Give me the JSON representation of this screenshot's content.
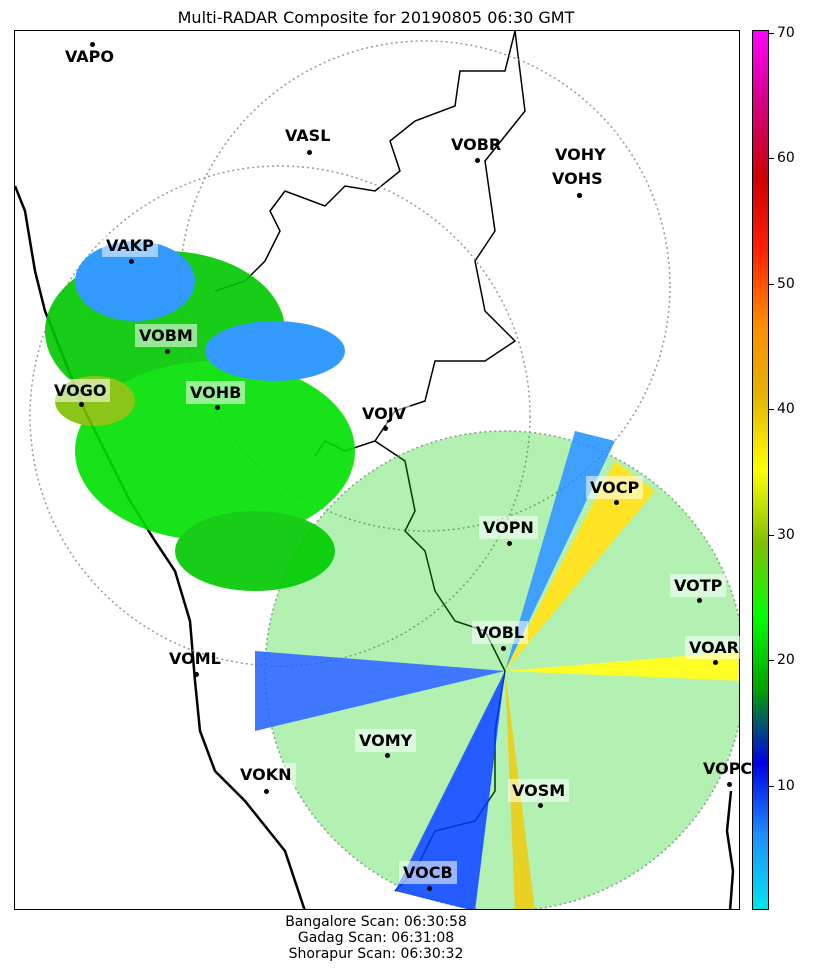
{
  "title": "Multi-RADAR Composite for 20190805 06:30 GMT",
  "colorbar": {
    "ticks": [
      "10",
      "20",
      "30",
      "40",
      "50",
      "60",
      "70"
    ],
    "colors": [
      "#00e5ee",
      "#1e90ff",
      "#0000e6",
      "#00a000",
      "#00ff00",
      "#7fbf00",
      "#ffff00",
      "#e6b400",
      "#ff8c00",
      "#ff2000",
      "#cc0000",
      "#d40080",
      "#ff00ff"
    ]
  },
  "stations": [
    {
      "name": "VAPO",
      "highlight": false
    },
    {
      "name": "VASL",
      "highlight": false
    },
    {
      "name": "VOBR",
      "highlight": false
    },
    {
      "name": "VOHY",
      "highlight": false
    },
    {
      "name": "VOHS",
      "highlight": false
    },
    {
      "name": "VAKP",
      "highlight": true
    },
    {
      "name": "VOBM",
      "highlight": true
    },
    {
      "name": "VOGO",
      "highlight": true
    },
    {
      "name": "VOHB",
      "highlight": true
    },
    {
      "name": "VOJV",
      "highlight": true
    },
    {
      "name": "VOCP",
      "highlight": true
    },
    {
      "name": "VOPN",
      "highlight": true
    },
    {
      "name": "VOTP",
      "highlight": true
    },
    {
      "name": "VOBL",
      "highlight": true
    },
    {
      "name": "VOAR",
      "highlight": true
    },
    {
      "name": "VOML",
      "highlight": false
    },
    {
      "name": "VOMY",
      "highlight": true
    },
    {
      "name": "VOKN",
      "highlight": true
    },
    {
      "name": "VOSM",
      "highlight": true
    },
    {
      "name": "VOPC",
      "highlight": false
    },
    {
      "name": "VOCB",
      "highlight": true
    }
  ],
  "footer": {
    "line1": "Bangalore Scan: 06:30:58",
    "line2": "Gadag Scan: 06:31:08",
    "line3": "Shorapur Scan: 06:30:32"
  }
}
